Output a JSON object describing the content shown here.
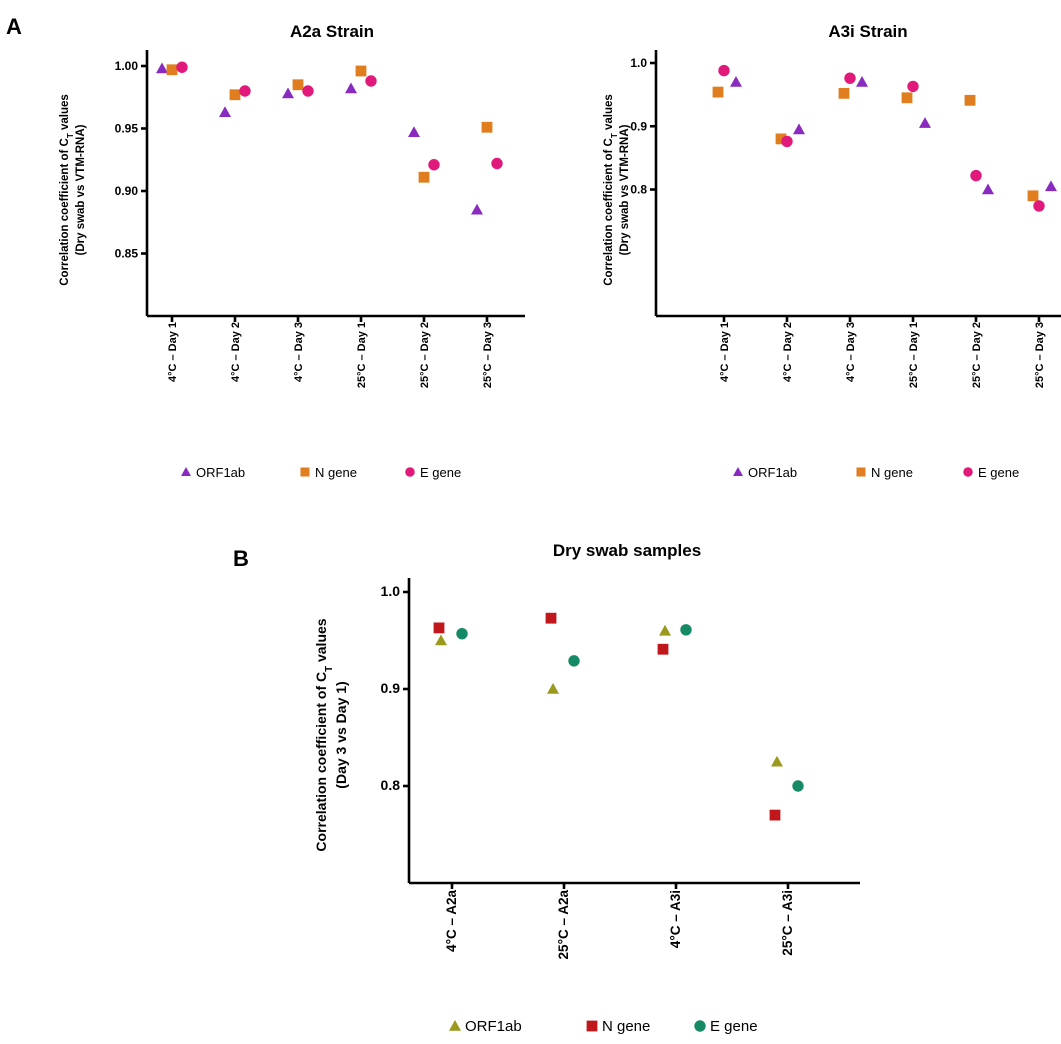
{
  "panels": {
    "a": "A",
    "b": "B"
  },
  "chart_data": [
    {
      "type": "scatter",
      "title": "A2a Strain",
      "ylabel": "Correlation coefficient of C_T values (Dry swab vs VTM-RNA)",
      "ylim": [
        0.8,
        1.0
      ],
      "yticks": [
        1.0,
        0.95,
        0.9,
        0.85
      ],
      "categories": [
        "4°C – Day 1",
        "4°C – Day 2",
        "4°C – Day 3",
        "25°C – Day 1",
        "25°C – Day 2",
        "25°C – Day 3"
      ],
      "series": [
        {
          "name": "ORF1ab",
          "marker": "triangle",
          "color": "#8a2bc0",
          "values": [
            0.998,
            0.963,
            0.978,
            0.982,
            0.947,
            0.885
          ]
        },
        {
          "name": "N gene",
          "marker": "square",
          "color": "#e07d1e",
          "values": [
            0.997,
            0.977,
            0.985,
            0.996,
            0.911,
            0.951
          ]
        },
        {
          "name": "E gene",
          "marker": "circle",
          "color": "#e0197a",
          "values": [
            0.999,
            0.98,
            0.98,
            0.988,
            0.921,
            0.922
          ]
        }
      ],
      "legend_position": "bottom"
    },
    {
      "type": "scatter",
      "title": "A3i Strain",
      "ylabel": "Correlation coefficient of C_T values (Dry swab vs VTM-RNA)",
      "ylim": [
        0.6,
        1.0
      ],
      "yticks": [
        1.0,
        0.9,
        0.8
      ],
      "categories": [
        "4°C – Day 1",
        "4°C – Day 2",
        "4°C – Day 3",
        "25°C – Day 1",
        "25°C – Day 2",
        "25°C – Day 3"
      ],
      "series": [
        {
          "name": "ORF1ab",
          "marker": "triangle",
          "color": "#8a2bc0",
          "values": [
            0.97,
            0.895,
            0.97,
            0.905,
            0.8,
            0.805
          ]
        },
        {
          "name": "N gene",
          "marker": "square",
          "color": "#e07d1e",
          "values": [
            0.954,
            0.88,
            0.952,
            0.945,
            0.941,
            0.79
          ]
        },
        {
          "name": "E gene",
          "marker": "circle",
          "color": "#e0197a",
          "values": [
            0.988,
            0.876,
            0.976,
            0.963,
            0.822,
            0.774
          ]
        }
      ],
      "legend_position": "bottom"
    },
    {
      "type": "scatter",
      "title": "Dry swab samples",
      "ylabel": "Correlation coefficient of C_T values (Day 3 vs Day 1)",
      "ylim": [
        0.7,
        1.0
      ],
      "yticks": [
        1.0,
        0.9,
        0.8
      ],
      "categories": [
        "4°C – A2a",
        "25°C – A2a",
        "4°C – A3i",
        "25°C – A3i"
      ],
      "series": [
        {
          "name": "ORF1ab",
          "marker": "triangle",
          "color": "#9c9a1c",
          "values": [
            0.95,
            0.9,
            0.96,
            0.825
          ]
        },
        {
          "name": "N gene",
          "marker": "square",
          "color": "#c0171d",
          "values": [
            0.963,
            0.973,
            0.941,
            0.77
          ]
        },
        {
          "name": "E gene",
          "marker": "circle",
          "color": "#168a66",
          "values": [
            0.957,
            0.929,
            0.961,
            0.8
          ]
        }
      ],
      "legend_position": "bottom"
    }
  ]
}
